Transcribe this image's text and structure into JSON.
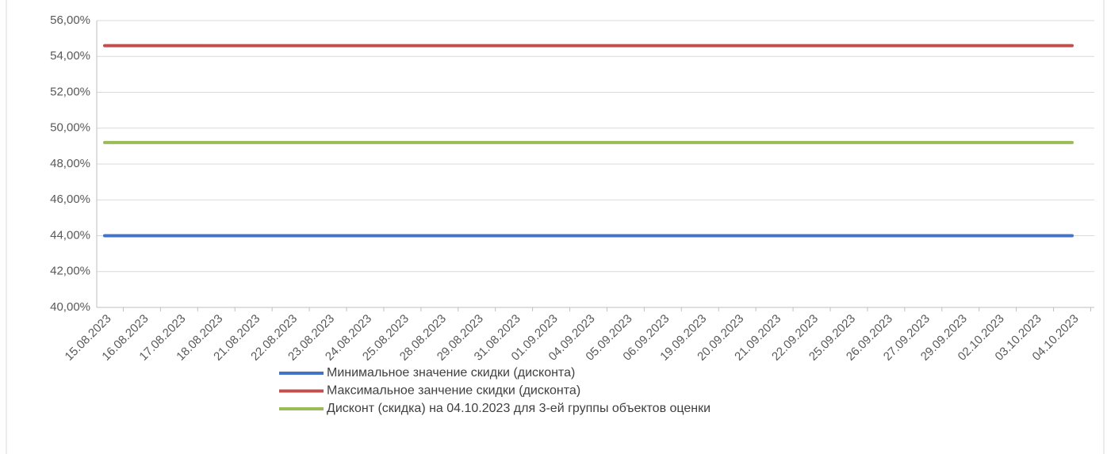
{
  "chart_data": {
    "type": "line",
    "categories": [
      "15.08.2023",
      "16.08.2023",
      "17.08.2023",
      "18.08.2023",
      "21.08.2023",
      "22.08.2023",
      "23.08.2023",
      "24.08.2023",
      "25.08.2023",
      "28.08.2023",
      "29.08.2023",
      "31.08.2023",
      "01.09.2023",
      "04.09.2023",
      "05.09.2023",
      "06.09.2023",
      "19.09.2023",
      "20.09.2023",
      "21.09.2023",
      "22.09.2023",
      "25.09.2023",
      "26.09.2023",
      "27.09.2023",
      "29.09.2023",
      "02.10.2023",
      "03.10.2023",
      "04.10.2023"
    ],
    "series": [
      {
        "name": "Минимальное значение скидки (дисконта)",
        "color": "#4472c4",
        "values": [
          44,
          44,
          44,
          44,
          44,
          44,
          44,
          44,
          44,
          44,
          44,
          44,
          44,
          44,
          44,
          44,
          44,
          44,
          44,
          44,
          44,
          44,
          44,
          44,
          44,
          44,
          44
        ]
      },
      {
        "name": "Максимальное занчение скидки (дисконта)",
        "color": "#c0504d",
        "values": [
          54.6,
          54.6,
          54.6,
          54.6,
          54.6,
          54.6,
          54.6,
          54.6,
          54.6,
          54.6,
          54.6,
          54.6,
          54.6,
          54.6,
          54.6,
          54.6,
          54.6,
          54.6,
          54.6,
          54.6,
          54.6,
          54.6,
          54.6,
          54.6,
          54.6,
          54.6,
          54.6
        ]
      },
      {
        "name": "Дисконт (скидка) на 04.10.2023 для 3-ей группы объектов оценки",
        "color": "#9bbb59",
        "values": [
          49.2,
          49.2,
          49.2,
          49.2,
          49.2,
          49.2,
          49.2,
          49.2,
          49.2,
          49.2,
          49.2,
          49.2,
          49.2,
          49.2,
          49.2,
          49.2,
          49.2,
          49.2,
          49.2,
          49.2,
          49.2,
          49.2,
          49.2,
          49.2,
          49.2,
          49.2,
          49.2
        ]
      }
    ],
    "ylim": [
      40,
      56
    ],
    "yticks": [
      {
        "value": 40,
        "label": "40,00%"
      },
      {
        "value": 42,
        "label": "42,00%"
      },
      {
        "value": 44,
        "label": "44,00%"
      },
      {
        "value": 46,
        "label": "46,00%"
      },
      {
        "value": 48,
        "label": "48,00%"
      },
      {
        "value": 50,
        "label": "50,00%"
      },
      {
        "value": 52,
        "label": "52,00%"
      },
      {
        "value": 54,
        "label": "54,00%"
      },
      {
        "value": 56,
        "label": "56,00%"
      }
    ],
    "grid": true,
    "legend": "bottom"
  }
}
